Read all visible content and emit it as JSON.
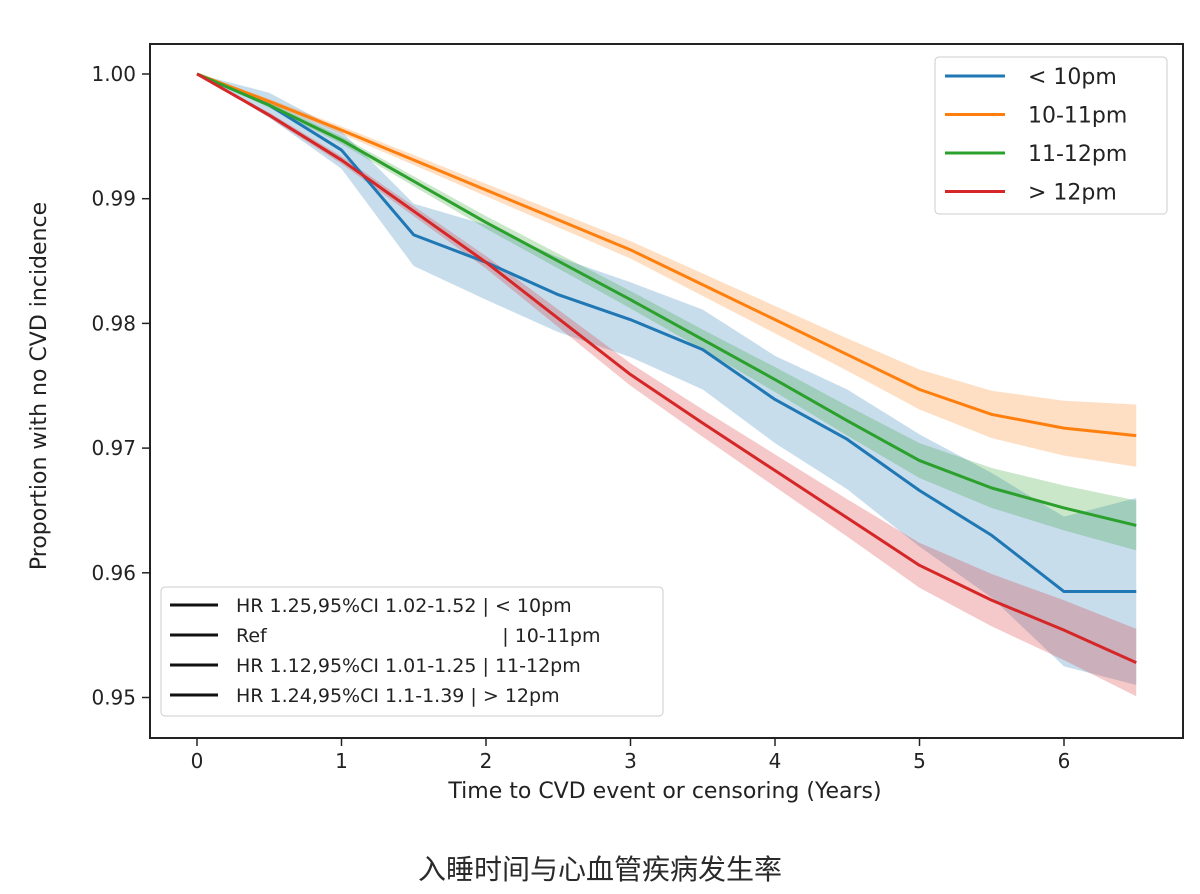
{
  "chart_data": {
    "type": "line",
    "title": "",
    "xlabel": "Time to CVD event or censoring (Years)",
    "ylabel": "Proportion with no CVD incidence",
    "xlim": [
      -0.33,
      6.8
    ],
    "ylim": [
      0.9469,
      1.0024
    ],
    "xticks": [
      0,
      1,
      2,
      3,
      4,
      5,
      6
    ],
    "yticks": [
      "0.95",
      "0.96",
      "0.97",
      "0.98",
      "0.99",
      "1.00"
    ],
    "grid": false,
    "legend_placement": "top-right",
    "x": [
      0,
      0.5,
      1,
      1.5,
      2,
      2.5,
      3,
      3.5,
      4,
      4.5,
      5,
      5.5,
      6,
      6.5
    ],
    "series": [
      {
        "name": "< 10pm",
        "color": "#1f77b4",
        "values": [
          1.0,
          0.9975,
          0.9939,
          0.9871,
          0.9849,
          0.9823,
          0.9803,
          0.9779,
          0.9739,
          0.9707,
          0.9666,
          0.963,
          0.9585,
          0.9585
        ],
        "ci_halfwidth": [
          0,
          0.001,
          0.0015,
          0.0025,
          0.003,
          0.003,
          0.003,
          0.0032,
          0.0035,
          0.004,
          0.0045,
          0.005,
          0.006,
          0.0075
        ]
      },
      {
        "name": "10-11pm",
        "color": "#ff7f0e",
        "values": [
          1.0,
          0.9978,
          0.9955,
          0.9931,
          0.9907,
          0.9883,
          0.9859,
          0.9831,
          0.9803,
          0.9775,
          0.9747,
          0.9727,
          0.9716,
          0.971
        ],
        "ci_halfwidth": [
          0,
          0.0002,
          0.0003,
          0.0004,
          0.0005,
          0.0006,
          0.0007,
          0.0009,
          0.0011,
          0.0013,
          0.0016,
          0.0019,
          0.0022,
          0.0025
        ]
      },
      {
        "name": "11-12pm",
        "color": "#2ca02c",
        "values": [
          1.0,
          0.9975,
          0.9947,
          0.9914,
          0.9881,
          0.985,
          0.9819,
          0.9787,
          0.9755,
          0.9722,
          0.969,
          0.9668,
          0.9652,
          0.9638
        ],
        "ci_halfwidth": [
          0,
          0.0002,
          0.0003,
          0.0004,
          0.0005,
          0.0006,
          0.0007,
          0.0008,
          0.001,
          0.0012,
          0.0014,
          0.0016,
          0.0018,
          0.002
        ]
      },
      {
        "name": "> 12pm",
        "color": "#d62728",
        "values": [
          1.0,
          0.9967,
          0.9931,
          0.989,
          0.9849,
          0.9804,
          0.9759,
          0.972,
          0.9682,
          0.9644,
          0.9606,
          0.9578,
          0.9554,
          0.9528
        ],
        "ci_halfwidth": [
          0,
          0.0002,
          0.0003,
          0.0004,
          0.0005,
          0.0007,
          0.0009,
          0.0011,
          0.0013,
          0.0015,
          0.0018,
          0.0021,
          0.0024,
          0.0027
        ]
      }
    ],
    "hr_legend": [
      "HR 1.25,95%CI 1.02-1.52 | < 10pm",
      "Ref                                       | 10-11pm",
      "HR 1.12,95%CI 1.01-1.25 | 11-12pm",
      "HR 1.24,95%CI 1.1-1.39 | > 12pm"
    ]
  },
  "caption": "入睡时间与心血管疾病发生率"
}
